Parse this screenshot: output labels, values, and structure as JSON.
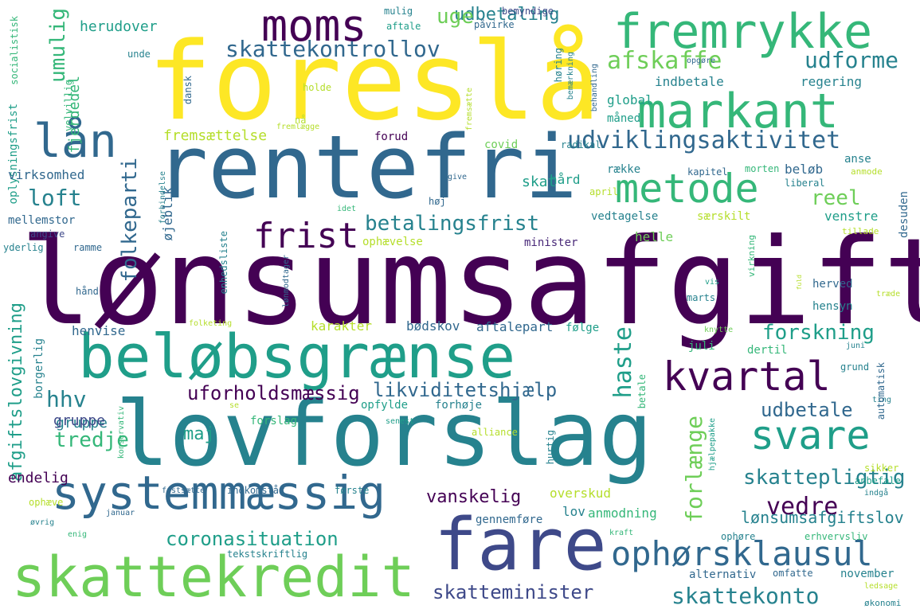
{
  "words": [
    "lønsumsafgift",
    "foreslå",
    "rentefri",
    "lovforslag",
    "beløbsgrænse",
    "fare",
    "skattekredit",
    "systemmæssig",
    "markant",
    "fremrykke",
    "moms",
    "lån",
    "metode",
    "kvartal",
    "svare",
    "ophørsklausul",
    "frist",
    "udviklingsaktivitet",
    "skattekontrollov",
    "afskaffe",
    "udforme",
    "betalingsfrist",
    "likviditetshjælp",
    "uforholdsmæssig",
    "forskning",
    "haste",
    "forlænge",
    "skattepligtig",
    "udbetale",
    "coronasituation",
    "vanskelig",
    "vedre",
    "skatteminister",
    "skattekonto",
    "afgiftslovgivning",
    "udbetaling",
    "umulig",
    "folkeparti",
    "loft",
    "hhv",
    "tredje",
    "maj",
    "reel",
    "uge",
    "lønsumsafgiftslov",
    "overskud",
    "lov",
    "anmodning",
    "gennemføre",
    "karakter",
    "bødskov",
    "aftalepart",
    "følge",
    "henvise",
    "gruppe",
    "endelig",
    "ophæve",
    "oplysningsfrist",
    "virksomhed",
    "mellemstor",
    "angive",
    "ramme",
    "yderlig",
    "hånd",
    "borgerlig",
    "fjerdedel",
    "herudover",
    "velvillig",
    "socialistisk",
    "unde",
    "dansk",
    "holde",
    "nå",
    "fremlægge",
    "fremsættelse",
    "forud",
    "covid",
    "radikal",
    "give",
    "idet",
    "høj",
    "hård",
    "april",
    "skat",
    "række",
    "beløb",
    "kapitel",
    "morten",
    "liberal",
    "anse",
    "anmode",
    "venstre",
    "særskilt",
    "vedtagelse",
    "tillade",
    "desuden",
    "helle",
    "minister",
    "ophævelse",
    "forbindelse",
    "øjeblik",
    "enhedsliste",
    "lønmodtager",
    "folketing",
    "forslag",
    "opfylde",
    "forhøje",
    "senest",
    "alliance",
    "betale",
    "hurtig",
    "hjælpepakke",
    "ting",
    "automatisk",
    "grund",
    "juni",
    "dertil",
    "juli",
    "knytte",
    "hensyn",
    "herved",
    "marts",
    "vis",
    "fuld",
    "virkning",
    "træde",
    "sikker",
    "anbefale",
    "indgå",
    "erhvervsliv",
    "ophøre",
    "kraft",
    "november",
    "omfatte",
    "alternativ",
    "ledsage",
    "økonomi",
    "indkomstår",
    "første",
    "fastsætte",
    "januar",
    "øvrig",
    "enig",
    "tekstskriftlig",
    "konservativ",
    "se",
    "mulig",
    "aftale",
    "påvirke",
    "bemyndige",
    "høring",
    "bemærkning",
    "fremsætte",
    "behandling",
    "opgøre",
    "indbetale",
    "regering",
    "global",
    "måned",
    "gruppe"
  ],
  "colors": [
    "#440154",
    "#482878",
    "#3e4989",
    "#31688e",
    "#26828e",
    "#1f9e89",
    "#35b779",
    "#6ece58",
    "#b5de2b",
    "#fde725"
  ]
}
